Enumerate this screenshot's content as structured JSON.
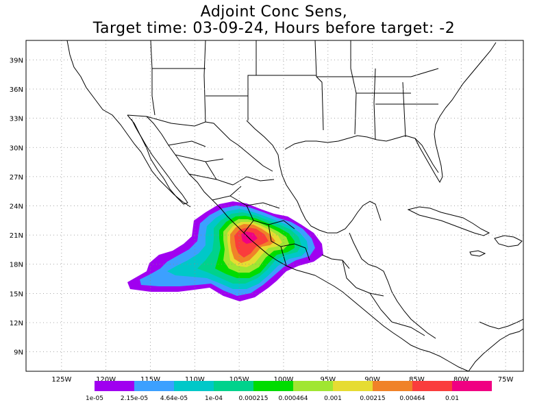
{
  "title": {
    "line1": "Adjoint Conc Sens,",
    "line2": "Target time: 03-09-24, Hours before target: -2"
  },
  "map": {
    "lat_labels": [
      "39N",
      "36N",
      "33N",
      "30N",
      "27N",
      "24N",
      "21N",
      "18N",
      "15N",
      "12N",
      "9N"
    ],
    "lon_labels": [
      "125W",
      "120W",
      "115W",
      "110W",
      "105W",
      "100W",
      "95W",
      "90W",
      "85W",
      "80W",
      "75W"
    ],
    "lat_values": [
      39,
      36,
      33,
      30,
      27,
      24,
      21,
      18,
      15,
      12,
      9
    ],
    "lon_values": [
      -125,
      -120,
      -115,
      -110,
      -105,
      -100,
      -95,
      -90,
      -85,
      -80,
      -75
    ],
    "lon_range": [
      -129,
      -73
    ],
    "lat_range": [
      7,
      41
    ],
    "grid": "dotted"
  },
  "colorbar": {
    "labels": [
      "1e-05",
      "2.15e-05",
      "4.64e-05",
      "1e-04",
      "0.000215",
      "0.000464",
      "0.001",
      "0.00215",
      "0.00464",
      "0.01"
    ],
    "colors": [
      "#a000f0",
      "#3ca0ff",
      "#00c8c8",
      "#00d28c",
      "#00dc00",
      "#a0e632",
      "#e6dc32",
      "#f08228",
      "#fa3c3c",
      "#f00082"
    ]
  },
  "sensitivity_field": {
    "levels": [
      {
        "color": "#a000f0"
      },
      {
        "color": "#3ca0ff"
      },
      {
        "color": "#00c8c8"
      },
      {
        "color": "#00d28c"
      },
      {
        "color": "#00dc00"
      },
      {
        "color": "#a0e632"
      },
      {
        "color": "#e6dc32"
      },
      {
        "color": "#f08228"
      },
      {
        "color": "#fa3c3c"
      },
      {
        "color": "#f00082"
      }
    ]
  }
}
